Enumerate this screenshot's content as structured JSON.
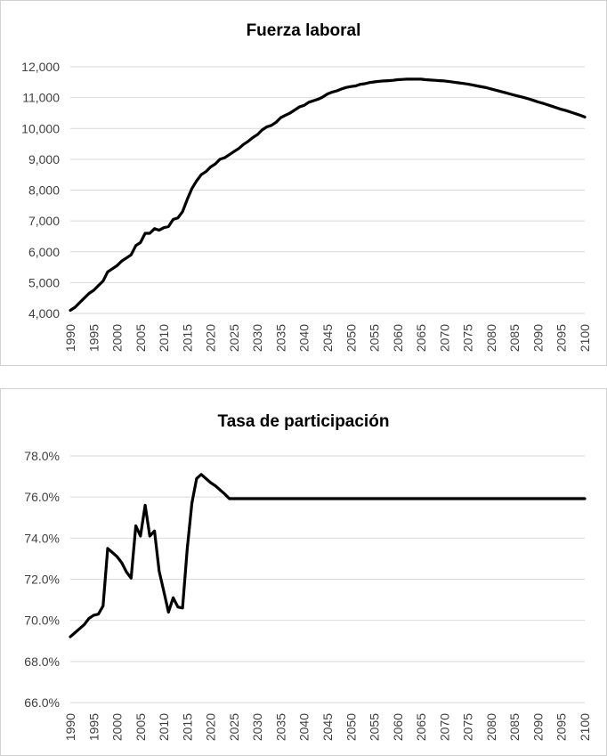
{
  "chart_data": [
    {
      "type": "line",
      "title": "Fuerza laboral",
      "xlabel": "",
      "ylabel": "",
      "xlim": [
        1990,
        2100
      ],
      "ylim": [
        4000,
        12000
      ],
      "y_ticks": [
        4000,
        5000,
        6000,
        7000,
        8000,
        9000,
        10000,
        11000,
        12000
      ],
      "y_tick_labels": [
        "4,000",
        "5,000",
        "6,000",
        "7,000",
        "8,000",
        "9,000",
        "10,000",
        "11,000",
        "12,000"
      ],
      "x_ticks": [
        1990,
        1995,
        2000,
        2005,
        2010,
        2015,
        2020,
        2025,
        2030,
        2035,
        2040,
        2045,
        2050,
        2055,
        2060,
        2065,
        2070,
        2075,
        2080,
        2085,
        2090,
        2095,
        2100
      ],
      "grid": true,
      "legend": "none",
      "series": [
        {
          "color": "#000000",
          "points": [
            [
              1990,
              4100
            ],
            [
              1991,
              4200
            ],
            [
              1992,
              4350
            ],
            [
              1993,
              4500
            ],
            [
              1994,
              4650
            ],
            [
              1995,
              4750
            ],
            [
              1996,
              4900
            ],
            [
              1997,
              5050
            ],
            [
              1998,
              5350
            ],
            [
              1999,
              5450
            ],
            [
              2000,
              5550
            ],
            [
              2001,
              5700
            ],
            [
              2002,
              5800
            ],
            [
              2003,
              5900
            ],
            [
              2004,
              6200
            ],
            [
              2005,
              6300
            ],
            [
              2006,
              6600
            ],
            [
              2007,
              6600
            ],
            [
              2008,
              6750
            ],
            [
              2009,
              6700
            ],
            [
              2010,
              6780
            ],
            [
              2011,
              6820
            ],
            [
              2012,
              7050
            ],
            [
              2013,
              7100
            ],
            [
              2014,
              7300
            ],
            [
              2015,
              7700
            ],
            [
              2016,
              8050
            ],
            [
              2017,
              8300
            ],
            [
              2018,
              8500
            ],
            [
              2019,
              8600
            ],
            [
              2020,
              8750
            ],
            [
              2021,
              8850
            ],
            [
              2022,
              9000
            ],
            [
              2023,
              9050
            ],
            [
              2024,
              9150
            ],
            [
              2025,
              9250
            ],
            [
              2026,
              9350
            ],
            [
              2027,
              9480
            ],
            [
              2028,
              9580
            ],
            [
              2029,
              9700
            ],
            [
              2030,
              9800
            ],
            [
              2031,
              9950
            ],
            [
              2032,
              10050
            ],
            [
              2033,
              10100
            ],
            [
              2034,
              10200
            ],
            [
              2035,
              10350
            ],
            [
              2036,
              10430
            ],
            [
              2037,
              10500
            ],
            [
              2038,
              10600
            ],
            [
              2039,
              10700
            ],
            [
              2040,
              10750
            ],
            [
              2041,
              10850
            ],
            [
              2042,
              10900
            ],
            [
              2043,
              10950
            ],
            [
              2044,
              11020
            ],
            [
              2045,
              11120
            ],
            [
              2046,
              11180
            ],
            [
              2047,
              11220
            ],
            [
              2048,
              11280
            ],
            [
              2049,
              11330
            ],
            [
              2050,
              11360
            ],
            [
              2051,
              11380
            ],
            [
              2052,
              11430
            ],
            [
              2053,
              11450
            ],
            [
              2054,
              11490
            ],
            [
              2055,
              11510
            ],
            [
              2056,
              11530
            ],
            [
              2057,
              11540
            ],
            [
              2058,
              11550
            ],
            [
              2059,
              11560
            ],
            [
              2060,
              11580
            ],
            [
              2061,
              11590
            ],
            [
              2062,
              11600
            ],
            [
              2063,
              11600
            ],
            [
              2064,
              11600
            ],
            [
              2065,
              11600
            ],
            [
              2066,
              11580
            ],
            [
              2067,
              11570
            ],
            [
              2068,
              11560
            ],
            [
              2069,
              11550
            ],
            [
              2070,
              11540
            ],
            [
              2071,
              11520
            ],
            [
              2072,
              11500
            ],
            [
              2073,
              11480
            ],
            [
              2074,
              11460
            ],
            [
              2075,
              11440
            ],
            [
              2076,
              11410
            ],
            [
              2077,
              11380
            ],
            [
              2078,
              11350
            ],
            [
              2079,
              11320
            ],
            [
              2080,
              11280
            ],
            [
              2081,
              11240
            ],
            [
              2082,
              11200
            ],
            [
              2083,
              11160
            ],
            [
              2084,
              11120
            ],
            [
              2085,
              11080
            ],
            [
              2086,
              11040
            ],
            [
              2087,
              11000
            ],
            [
              2088,
              10960
            ],
            [
              2089,
              10910
            ],
            [
              2090,
              10860
            ],
            [
              2091,
              10820
            ],
            [
              2092,
              10770
            ],
            [
              2093,
              10720
            ],
            [
              2094,
              10670
            ],
            [
              2095,
              10620
            ],
            [
              2096,
              10580
            ],
            [
              2097,
              10530
            ],
            [
              2098,
              10480
            ],
            [
              2099,
              10430
            ],
            [
              2100,
              10370
            ]
          ]
        }
      ]
    },
    {
      "type": "line",
      "title": "Tasa de participación",
      "xlabel": "",
      "ylabel": "",
      "xlim": [
        1990,
        2100
      ],
      "ylim": [
        66.0,
        78.0
      ],
      "y_ticks": [
        66,
        68,
        70,
        72,
        74,
        76,
        78
      ],
      "y_tick_labels": [
        "66.0%",
        "68.0%",
        "70.0%",
        "72.0%",
        "74.0%",
        "76.0%",
        "78.0%"
      ],
      "x_ticks": [
        1990,
        1995,
        2000,
        2005,
        2010,
        2015,
        2020,
        2025,
        2030,
        2035,
        2040,
        2045,
        2050,
        2055,
        2060,
        2065,
        2070,
        2075,
        2080,
        2085,
        2090,
        2095,
        2100
      ],
      "grid": true,
      "legend": "none",
      "series": [
        {
          "color": "#000000",
          "points": [
            [
              1990,
              69.2
            ],
            [
              1991,
              69.4
            ],
            [
              1992,
              69.6
            ],
            [
              1993,
              69.8
            ],
            [
              1994,
              70.1
            ],
            [
              1995,
              70.25
            ],
            [
              1996,
              70.3
            ],
            [
              1997,
              70.7
            ],
            [
              1998,
              73.5
            ],
            [
              1999,
              73.3
            ],
            [
              2000,
              73.1
            ],
            [
              2001,
              72.8
            ],
            [
              2002,
              72.35
            ],
            [
              2003,
              72.05
            ],
            [
              2004,
              74.6
            ],
            [
              2005,
              74.1
            ],
            [
              2006,
              75.6
            ],
            [
              2007,
              74.1
            ],
            [
              2008,
              74.35
            ],
            [
              2009,
              72.4
            ],
            [
              2010,
              71.4
            ],
            [
              2011,
              70.4
            ],
            [
              2012,
              71.1
            ],
            [
              2013,
              70.65
            ],
            [
              2014,
              70.6
            ],
            [
              2015,
              73.5
            ],
            [
              2016,
              75.7
            ],
            [
              2017,
              76.9
            ],
            [
              2018,
              77.1
            ],
            [
              2019,
              76.9
            ],
            [
              2020,
              76.7
            ],
            [
              2021,
              76.55
            ],
            [
              2022,
              76.35
            ],
            [
              2023,
              76.15
            ],
            [
              2024,
              75.92
            ],
            [
              2025,
              75.92
            ],
            [
              2100,
              75.92
            ]
          ]
        }
      ]
    }
  ]
}
